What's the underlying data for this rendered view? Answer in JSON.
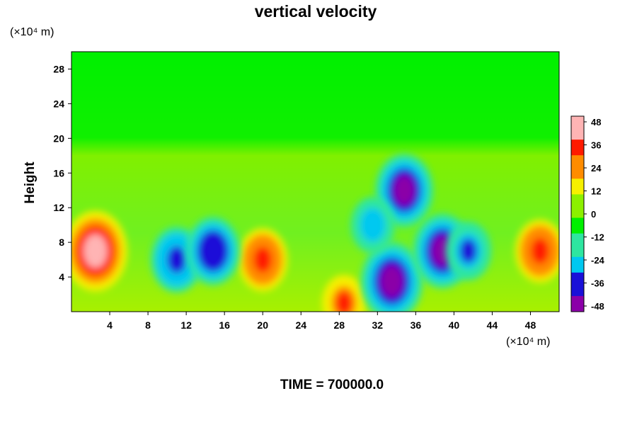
{
  "chart_data": {
    "type": "heatmap",
    "title": "vertical velocity",
    "ylabel": "Height",
    "xlabel": "",
    "x_unit": "(×10⁴ m)",
    "y_unit": "(×10⁴ m)",
    "xlim": [
      0,
      51
    ],
    "ylim": [
      0,
      30
    ],
    "x_ticks": [
      4,
      8,
      12,
      16,
      20,
      24,
      28,
      32,
      36,
      40,
      44,
      48
    ],
    "y_ticks": [
      4,
      8,
      12,
      16,
      20,
      24,
      28
    ],
    "colorbar": {
      "ticks": [
        48,
        36,
        24,
        12,
        0,
        -12,
        -24,
        -36,
        -48
      ],
      "min": -50,
      "max": 50,
      "colors": [
        "#8b00a8",
        "#1a10d8",
        "#00c8f0",
        "#2ee6a0",
        "#00f000",
        "#8cf000",
        "#f6f000",
        "#ff8c00",
        "#ff1a00",
        "#ffb4b4"
      ]
    },
    "features": [
      {
        "x": 2.5,
        "y": 7,
        "value": 50
      },
      {
        "x": 49,
        "y": 7,
        "value": 36
      },
      {
        "x": 20,
        "y": 6,
        "value": 36
      },
      {
        "x": 28.5,
        "y": 1,
        "value": 30
      },
      {
        "x": 33.5,
        "y": 3.5,
        "value": -48
      },
      {
        "x": 34.8,
        "y": 14,
        "value": -44
      },
      {
        "x": 38.8,
        "y": 7,
        "value": -45
      },
      {
        "x": 41.5,
        "y": 7,
        "value": -32
      },
      {
        "x": 11,
        "y": 6,
        "value": -38
      },
      {
        "x": 14.8,
        "y": 7,
        "value": -40
      },
      {
        "x": 31.5,
        "y": 10,
        "value": -30
      }
    ],
    "footer": "TIME = 700000.0"
  }
}
